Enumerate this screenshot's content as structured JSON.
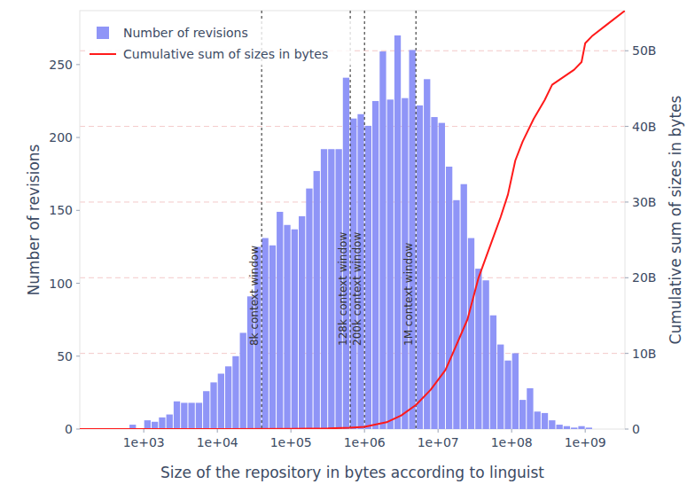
{
  "chart_data": {
    "type": "histogram",
    "x_label": "Size of the repository in bytes according to linguist",
    "y_label": "Number of revisions",
    "y2_label": "Cumulative sum of sizes in bytes",
    "log": "x",
    "grid": true,
    "legend": "top-left",
    "xlim": [
      135,
      3467368505
    ],
    "xticks": [
      {
        "value": 1000,
        "label": "1e+03"
      },
      {
        "value": 10000,
        "label": "1e+04"
      },
      {
        "value": 100000,
        "label": "1e+05"
      },
      {
        "value": 1000000,
        "label": "1e+06"
      },
      {
        "value": 10000000,
        "label": "1e+07"
      },
      {
        "value": 100000000,
        "label": "1e+08"
      },
      {
        "value": 1000000000,
        "label": "1e+09"
      }
    ],
    "ylim": [
      0,
      287
    ],
    "yticks": [
      0,
      50,
      100,
      150,
      200,
      250
    ],
    "y2lim": [
      0,
      55300000000
    ],
    "y2ticks": [
      0,
      {
        "value": 10000000000,
        "label": "10B"
      },
      {
        "value": 20000000000,
        "label": "20B"
      },
      {
        "value": 30000000000,
        "label": "30B"
      },
      {
        "value": 40000000000,
        "label": "40B"
      },
      {
        "value": 50000000000,
        "label": "50B"
      }
    ],
    "series": [
      {
        "name": "Number of revisions",
        "type": "bar",
        "color": "#8f95f7",
        "bins": [
          631,
          794,
          1000,
          1259,
          1585,
          1995,
          2512,
          3162,
          3981,
          5012,
          6310,
          7943,
          10000,
          12589,
          15849,
          19953,
          25119,
          31623,
          39811,
          50119,
          63096,
          79433,
          100000,
          125893,
          158489,
          199526,
          251189,
          316228,
          398107,
          501187,
          630957,
          794328,
          1000000,
          1258925,
          1584893,
          1995262,
          2511886,
          3162278,
          3981072,
          5011872,
          6309573,
          7943282,
          10000000,
          12589254,
          15848932,
          19952623,
          25118864,
          31622777,
          39810717,
          50118723,
          63095734,
          79432823,
          100000000,
          125892541,
          158489319,
          199526231,
          251188643,
          316227766,
          398107171,
          501187234,
          630957344,
          794328235,
          1000000000,
          1258925412
        ],
        "values": [
          3,
          0,
          6,
          5,
          8,
          10,
          19,
          18,
          18,
          18,
          26,
          32,
          38,
          43,
          50,
          66,
          91,
          125,
          131,
          126,
          149,
          140,
          137,
          146,
          165,
          177,
          192,
          192,
          192,
          241,
          213,
          216,
          208,
          225,
          259,
          226,
          270,
          227,
          260,
          222,
          240,
          214,
          210,
          180,
          157,
          168,
          131,
          110,
          102,
          78,
          58,
          47,
          52,
          20,
          28,
          12,
          11,
          6,
          3,
          2,
          1,
          2,
          1
        ]
      },
      {
        "name": "Cumulative sum of sizes in bytes",
        "type": "line",
        "axis": "y2",
        "color": "#ff1a1a",
        "x": [
          135,
          10000,
          100000,
          316228,
          630957,
          1000000,
          1995262,
          3162278,
          5011872,
          7943282,
          12589254,
          15848932,
          25118864,
          35481339,
          50118723,
          70794578,
          89125094,
          112201845,
          141253754,
          199526231,
          281838293,
          354813389,
          501187234,
          707945784,
          891250938,
          1000000000,
          1258925412,
          1995262315,
          3467368505
        ],
        "values": [
          0,
          1000000,
          20000000,
          80000000,
          180000000,
          300000000,
          900000000,
          1800000000,
          3200000000,
          5200000000,
          7800000000,
          10000000000,
          14500000000,
          20000000000,
          24000000000,
          28000000000,
          31000000000,
          35500000000,
          38000000000,
          41000000000,
          43500000000,
          45500000000,
          46500000000,
          47500000000,
          48500000000,
          51000000000,
          52000000000,
          53500000000,
          55300000000
        ]
      }
    ],
    "annotations": [
      {
        "x": 40000,
        "text": "8k context window"
      },
      {
        "x": 640000,
        "text": "128k context window"
      },
      {
        "x": 1000000,
        "text": "200k context window"
      },
      {
        "x": 5000000,
        "text": "1M context window"
      }
    ]
  }
}
